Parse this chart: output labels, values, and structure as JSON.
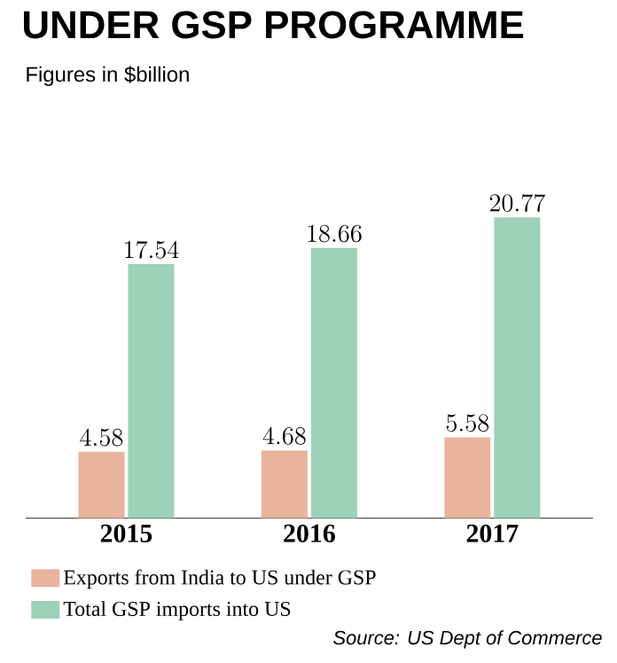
{
  "chart_data": {
    "type": "bar",
    "title": "UNDER GSP PROGRAMME",
    "subtitle": "Figures in $billion",
    "categories": [
      "2015",
      "2016",
      "2017"
    ],
    "series": [
      {
        "name": "Exports from India to US under GSP",
        "color": "#e8b49c",
        "values": [
          4.58,
          4.68,
          5.58
        ]
      },
      {
        "name": "Total GSP imports into US",
        "color": "#9dd1b8",
        "values": [
          17.54,
          18.66,
          20.77
        ]
      }
    ],
    "data_labels": true,
    "legend": "bottom",
    "annotations": [
      "Source: US Dept of Commerce"
    ]
  }
}
